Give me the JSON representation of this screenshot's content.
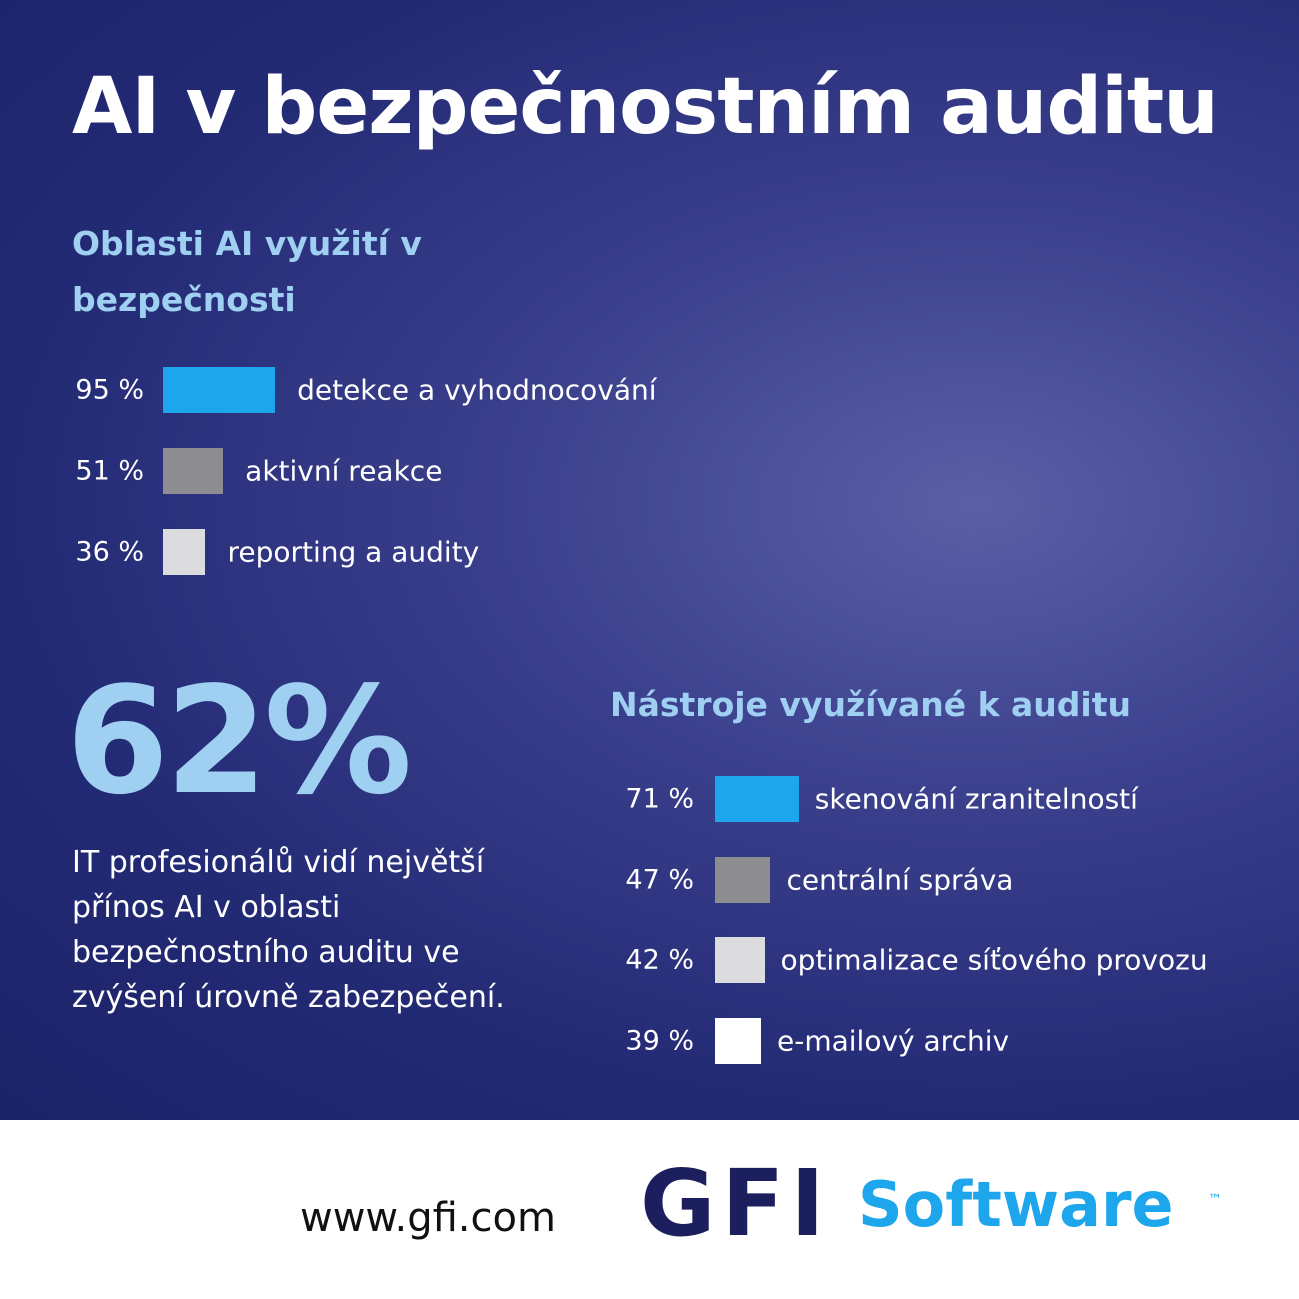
{
  "title": "AI v bezpečnostním auditu",
  "chart_data": [
    {
      "type": "bar",
      "title": "Oblasti AI využití v bezpečnosti",
      "categories": [
        "detekce a vyhodnocování",
        "aktivní reakce",
        "reporting a audity"
      ],
      "values": [
        95,
        51,
        36
      ],
      "value_labels": [
        "95 %",
        "51 %",
        "36 %"
      ],
      "colors": [
        "#1da6ec",
        "#8c8c91",
        "#dcdce0"
      ]
    },
    {
      "type": "bar",
      "title": "Nástroje využívané k auditu",
      "categories": [
        "skenování zranitelností",
        "centrální správa",
        "optimalizace síťového provozu",
        "e-mailový archiv"
      ],
      "values": [
        71,
        47,
        42,
        39
      ],
      "value_labels": [
        "71 %",
        "47 %",
        "42 %",
        "39 %"
      ],
      "colors": [
        "#1da6ec",
        "#8c8c91",
        "#dcdce0",
        "#ffffff"
      ]
    }
  ],
  "stat": "62%",
  "stat_text": "IT profesionálů vidí největší přínos AI v oblasti bezpečnostního auditu ve zvýšení úrovně zabezpečení.",
  "footer": {
    "url": "www.gfi.com",
    "logo_mark": "GFI",
    "logo_text": "Software",
    "trademark": "™"
  }
}
